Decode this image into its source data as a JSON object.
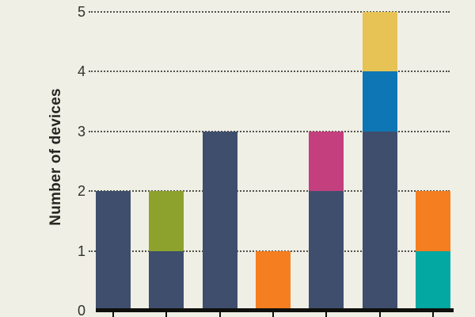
{
  "chart_data": {
    "type": "bar",
    "stacked": true,
    "title": "",
    "ylabel": "Number of devices",
    "xlabel": "",
    "ylim": [
      0,
      5
    ],
    "yticks": [
      0,
      1,
      2,
      3,
      4,
      5
    ],
    "grid": "horizontal-dotted",
    "legend_position": "none",
    "x_tick_labels_visible": false,
    "categories": [
      "",
      "",
      "",
      "",
      "",
      "",
      ""
    ],
    "bars": [
      {
        "total": 2,
        "segments": [
          {
            "color": "navy",
            "value": 2
          }
        ]
      },
      {
        "total": 2,
        "segments": [
          {
            "color": "navy",
            "value": 1
          },
          {
            "color": "olive",
            "value": 1
          }
        ]
      },
      {
        "total": 3,
        "segments": [
          {
            "color": "navy",
            "value": 3
          }
        ]
      },
      {
        "total": 1,
        "segments": [
          {
            "color": "orange",
            "value": 1
          }
        ]
      },
      {
        "total": 3,
        "segments": [
          {
            "color": "navy",
            "value": 2
          },
          {
            "color": "magenta",
            "value": 1
          }
        ]
      },
      {
        "total": 5,
        "segments": [
          {
            "color": "navy",
            "value": 3
          },
          {
            "color": "blue",
            "value": 1
          },
          {
            "color": "yellow",
            "value": 1
          }
        ]
      },
      {
        "total": 2,
        "segments": [
          {
            "color": "teal",
            "value": 1
          },
          {
            "color": "orange",
            "value": 1
          }
        ]
      }
    ],
    "palette": {
      "navy": "#3e4e6c",
      "olive": "#8ca22d",
      "orange": "#f57e20",
      "magenta": "#c33f7e",
      "blue": "#0e76b4",
      "yellow": "#e6c354",
      "teal": "#02a8a1"
    }
  },
  "colors": {
    "background": "#f0efe6",
    "axis": "#0f0f0c",
    "gridline": "#52514a",
    "tick_label_text": "#32312b",
    "axis_title_text": "#262621"
  }
}
